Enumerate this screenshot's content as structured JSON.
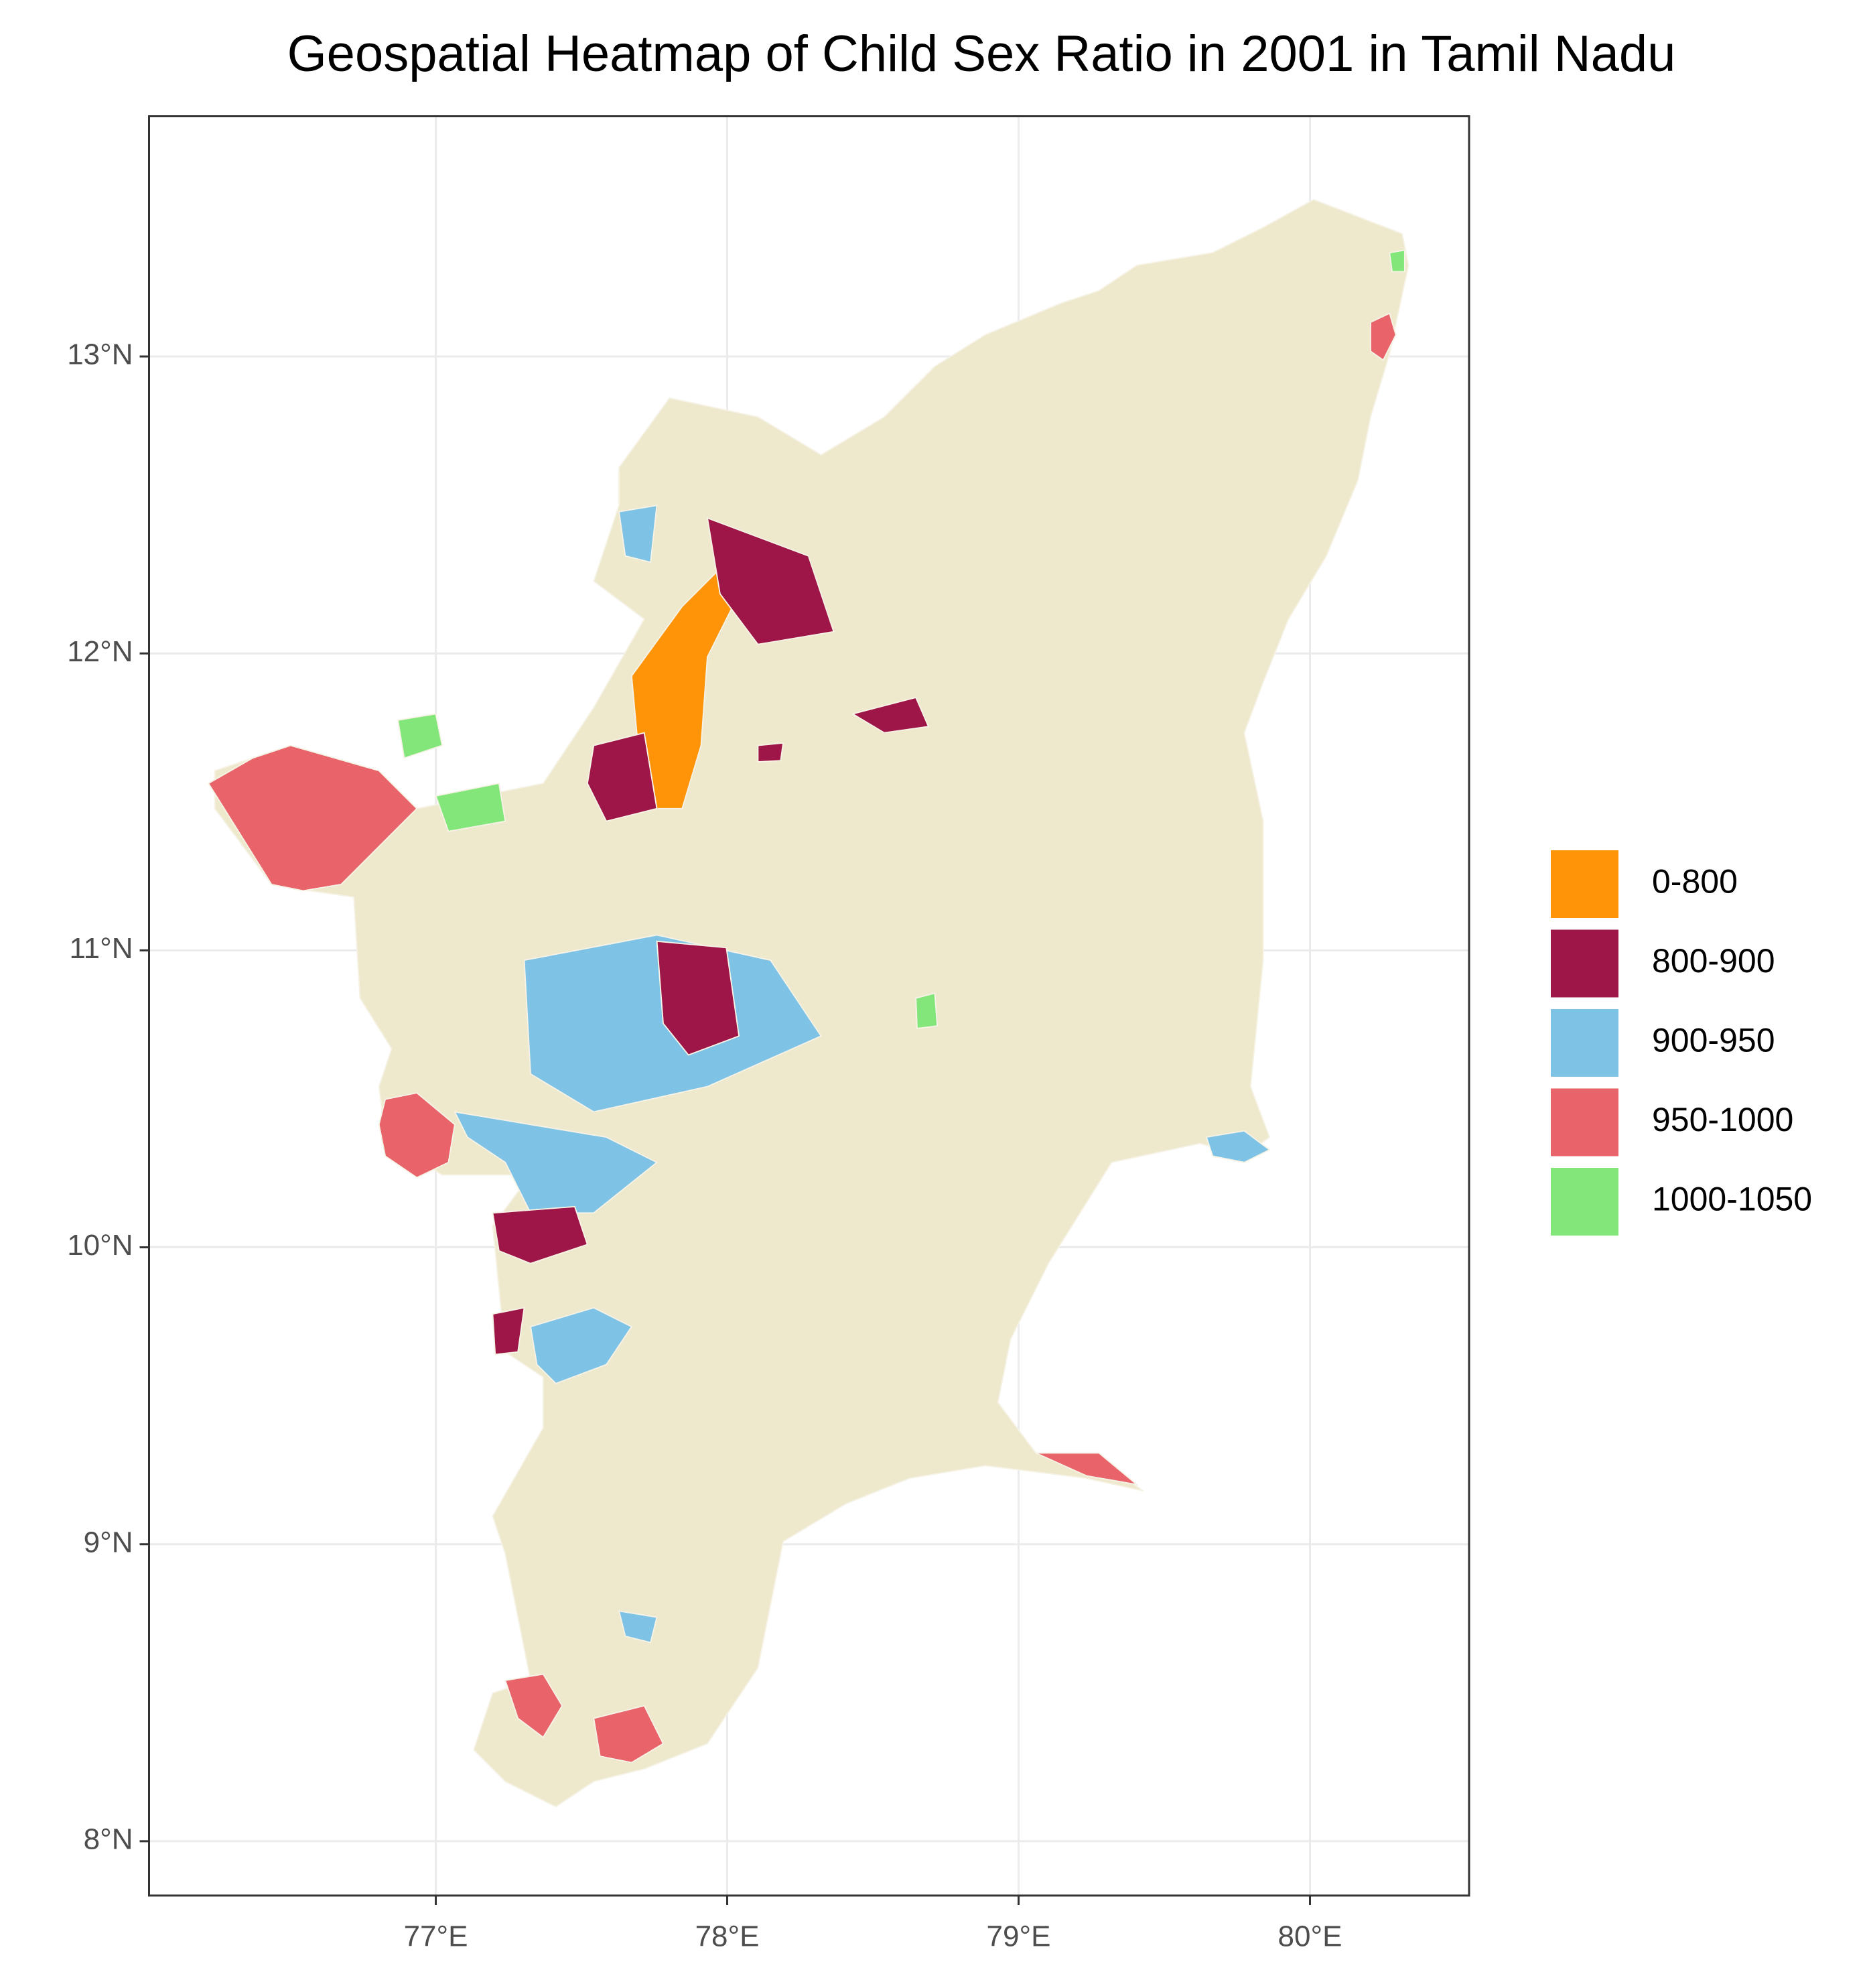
{
  "chart_data": {
    "type": "map",
    "title": "Geospatial Heatmap of Child Sex Ratio in 2001 in Tamil Nadu",
    "xlim": [
      76.016,
      80.546
    ],
    "ylim": [
      7.817,
      13.809
    ],
    "xticks": [
      {
        "value": 77,
        "label": "77°E"
      },
      {
        "value": 78,
        "label": "78°E"
      },
      {
        "value": 79,
        "label": "79°E"
      },
      {
        "value": 80,
        "label": "80°E"
      }
    ],
    "yticks": [
      {
        "value": 8,
        "label": "8°N"
      },
      {
        "value": 9,
        "label": "9°N"
      },
      {
        "value": 10,
        "label": "10°N"
      },
      {
        "value": 11,
        "label": "11°N"
      },
      {
        "value": 12,
        "label": "12°N"
      },
      {
        "value": 13,
        "label": "13°N"
      }
    ],
    "grid": true,
    "legend_position": "right",
    "legend": [
      {
        "name": "0-800",
        "color": "#ff9408"
      },
      {
        "name": "800-900",
        "color": "#9e1547"
      },
      {
        "name": "900-950",
        "color": "#7ec3e6"
      },
      {
        "name": "950-1000",
        "color": "#e8636a"
      },
      {
        "name": "1000-1050",
        "color": "#83e67a"
      }
    ]
  }
}
